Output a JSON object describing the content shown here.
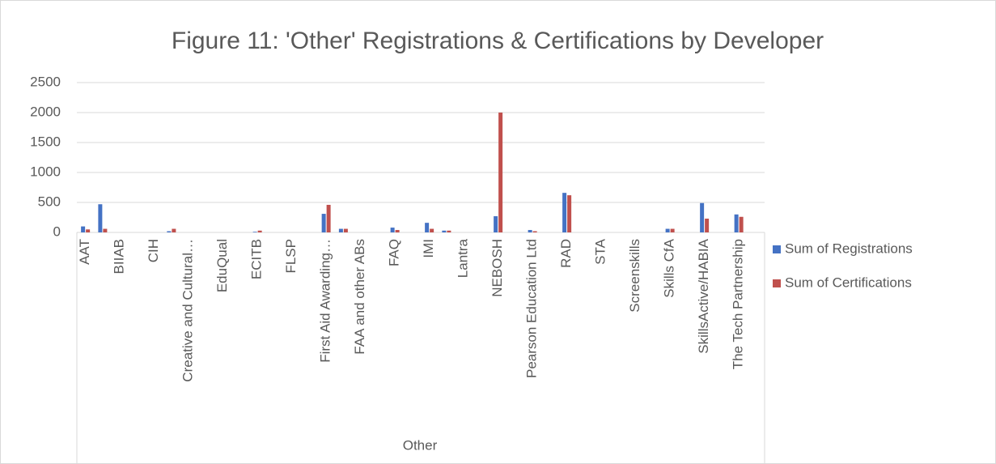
{
  "chart_data": {
    "type": "bar",
    "title": "Figure 11: 'Other' Registrations & Certifications by Developer",
    "group_label": "Other",
    "categories": [
      "AAT",
      null,
      "BIIAB",
      null,
      "CIH",
      null,
      "Creative and Cultural…",
      null,
      "EduQual",
      null,
      "ECITB",
      null,
      "FLSP",
      null,
      "First Aid Awarding…",
      null,
      "FAA and other ABs",
      null,
      "FAQ",
      null,
      "IMI",
      null,
      "Lantra",
      null,
      "NEBOSH",
      null,
      "Pearson Education Ltd",
      null,
      "RAD",
      null,
      "STA",
      null,
      "Screenskills",
      null,
      "Skills CfA",
      null,
      "SkillsActive/HABIA",
      null,
      "The Tech Partnership",
      null
    ],
    "series": [
      {
        "name": "Sum of Registrations",
        "color": "#4472c4",
        "values": [
          100,
          470,
          0,
          0,
          0,
          20,
          0,
          0,
          0,
          0,
          10,
          0,
          0,
          0,
          310,
          60,
          0,
          0,
          80,
          0,
          160,
          30,
          0,
          0,
          270,
          0,
          40,
          0,
          660,
          0,
          0,
          0,
          0,
          0,
          60,
          0,
          490,
          0,
          300,
          0
        ]
      },
      {
        "name": "Sum of Certifications",
        "color": "#c0504d",
        "values": [
          50,
          60,
          0,
          0,
          0,
          60,
          0,
          0,
          0,
          0,
          30,
          0,
          0,
          0,
          460,
          60,
          0,
          0,
          40,
          0,
          60,
          30,
          0,
          0,
          2000,
          0,
          20,
          0,
          620,
          0,
          0,
          0,
          0,
          0,
          60,
          0,
          230,
          0,
          260,
          0
        ]
      }
    ],
    "ylim": [
      0,
      2500
    ],
    "yticks": [
      0,
      500,
      1000,
      1500,
      2000,
      2500
    ],
    "grid": true,
    "legend": "right"
  }
}
